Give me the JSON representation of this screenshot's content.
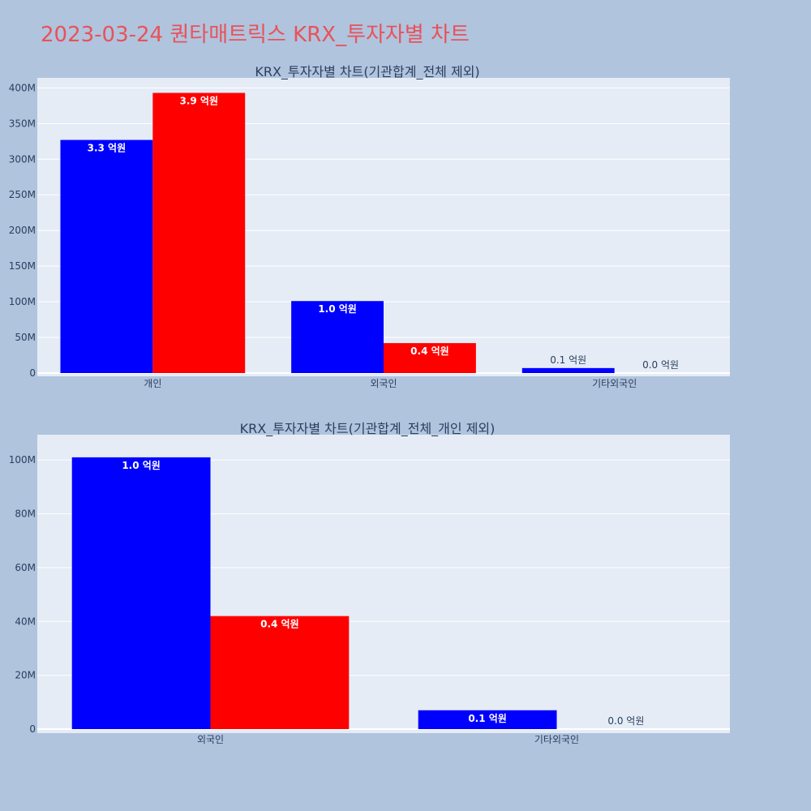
{
  "page": {
    "title": "2023-03-24 퀀타매트릭스 KRX_투자자별 차트"
  },
  "chart_data": [
    {
      "type": "bar",
      "title": "KRX_투자자별 차트(기관합계_전체 제외)",
      "categories": [
        "개인",
        "외국인",
        "기타외국인"
      ],
      "series": [
        {
          "color": "#0000ff",
          "values": [
            327000000,
            101000000,
            7000000
          ],
          "labels": [
            "3.3 억원",
            "1.0 억원",
            "0.1 억원"
          ]
        },
        {
          "color": "#ff0000",
          "values": [
            393000000,
            42000000,
            0
          ],
          "labels": [
            "3.9 억원",
            "0.4 억원",
            "0.0 억원"
          ]
        }
      ],
      "ylim": [
        0,
        405000000
      ],
      "yticks": [
        0,
        50000000,
        100000000,
        150000000,
        200000000,
        250000000,
        300000000,
        350000000,
        400000000
      ],
      "ytick_labels": [
        "0",
        "50M",
        "100M",
        "150M",
        "200M",
        "250M",
        "300M",
        "350M",
        "400M"
      ],
      "grid": true,
      "legend": "none"
    },
    {
      "type": "bar",
      "title": "KRX_투자자별 차트(기관합계_전체_개인 제외)",
      "categories": [
        "외국인",
        "기타외국인"
      ],
      "series": [
        {
          "color": "#0000ff",
          "values": [
            101000000,
            7000000
          ],
          "labels": [
            "1.0 억원",
            "0.1 억원"
          ]
        },
        {
          "color": "#ff0000",
          "values": [
            42000000,
            0
          ],
          "labels": [
            "0.4 억원",
            "0.0 억원"
          ]
        }
      ],
      "ylim": [
        0,
        107000000
      ],
      "yticks": [
        0,
        20000000,
        40000000,
        60000000,
        80000000,
        100000000
      ],
      "ytick_labels": [
        "0",
        "20M",
        "40M",
        "60M",
        "80M",
        "100M"
      ],
      "grid": true,
      "legend": "none"
    }
  ]
}
